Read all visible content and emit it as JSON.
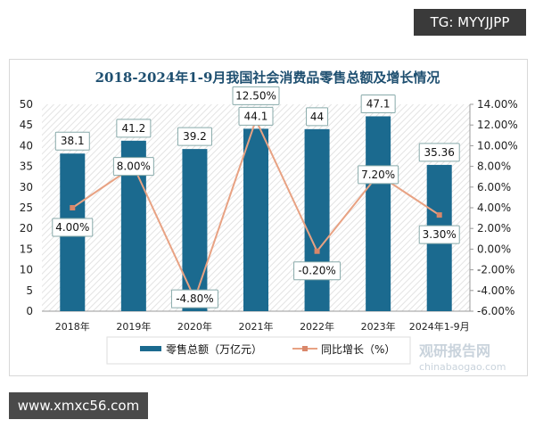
{
  "watermarks": {
    "tg": "TG: MYYJJPP",
    "site": "www.xmxc56.com",
    "logo": "观研报告网",
    "logo_sub": "chinabaogao.com"
  },
  "chart_data": {
    "type": "bar+line",
    "title": "2018-2024年1-9月我国社会消费品零售总额及增长情况",
    "categories": [
      "2018年",
      "2019年",
      "2020年",
      "2021年",
      "2022年",
      "2023年",
      "2024年1-9月"
    ],
    "series": [
      {
        "name": "零售总额（万亿元）",
        "type": "bar",
        "axis": "left",
        "color": "#1b6a8f",
        "values": [
          38.1,
          41.2,
          39.2,
          44.1,
          44,
          47.1,
          35.36
        ],
        "labels": [
          "38.1",
          "41.2",
          "39.2",
          "44.1",
          "44",
          "47.1",
          "35.36"
        ]
      },
      {
        "name": "同比增长（%）",
        "type": "line",
        "axis": "right",
        "color": "#e8a283",
        "values": [
          4.0,
          8.0,
          -4.8,
          12.5,
          -0.2,
          7.2,
          3.3
        ],
        "labels": [
          "4.00%",
          "8.00%",
          "-4.80%",
          "12.50%",
          "-0.20%",
          "7.20%",
          "3.30%"
        ]
      }
    ],
    "y_left": {
      "range": [
        0,
        50
      ],
      "ticks": [
        "0",
        "5",
        "10",
        "15",
        "20",
        "25",
        "30",
        "35",
        "40",
        "45",
        "50"
      ]
    },
    "y_right": {
      "range": [
        -6,
        14
      ],
      "ticks": [
        "-6.00%",
        "-4.00%",
        "-2.00%",
        "0.00%",
        "2.00%",
        "4.00%",
        "6.00%",
        "8.00%",
        "10.00%",
        "12.00%",
        "14.00%"
      ]
    },
    "legend": "bottom",
    "grid": false
  }
}
